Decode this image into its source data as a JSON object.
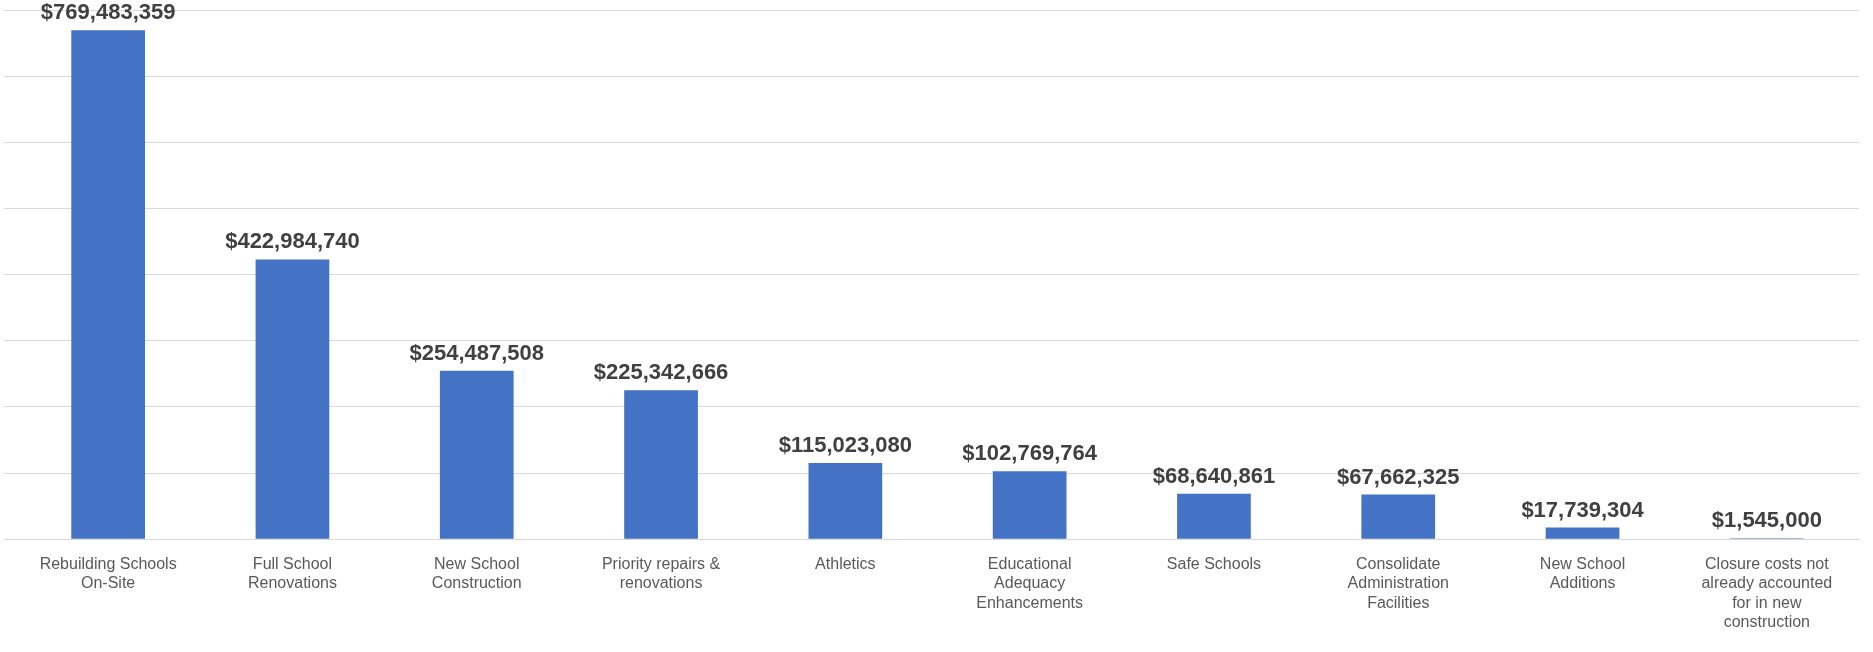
{
  "chart_data": {
    "type": "bar",
    "categories": [
      "Rebuilding Schools On-Site",
      "Full School Renovations",
      "New School Construction",
      "Priority repairs & renovations",
      "Athletics",
      "Educational Adequacy Enhancements",
      "Safe Schools",
      "Consolidate Administration Facilities",
      "New School Additions",
      "Closure costs not already accounted for in new construction"
    ],
    "values": [
      769483359,
      422984740,
      254487508,
      225342666,
      115023080,
      102769764,
      68640861,
      67662325,
      17739304,
      1545000
    ],
    "value_labels": [
      "$769,483,359",
      "$422,984,740",
      "$254,487,508",
      "$225,342,666",
      "$115,023,080",
      "$102,769,764",
      "$68,640,861",
      "$67,662,325",
      "$17,739,304",
      "$1,545,000"
    ],
    "color": "#4472c4",
    "ylim": [
      0,
      800000000
    ],
    "yticks": [
      {
        "value": 0,
        "label": null
      },
      {
        "value": 100000000,
        "label": null
      },
      {
        "value": 200000000,
        "label": null
      },
      {
        "value": 300000000,
        "label": null
      },
      {
        "value": 400000000,
        "label": null
      },
      {
        "value": 500000000,
        "label": null
      },
      {
        "value": 600000000,
        "label": null
      },
      {
        "value": 700000000,
        "label": null
      },
      {
        "value": 800000000,
        "label": null
      }
    ],
    "grid": "y",
    "tick_labels": "x",
    "legend": false
  }
}
